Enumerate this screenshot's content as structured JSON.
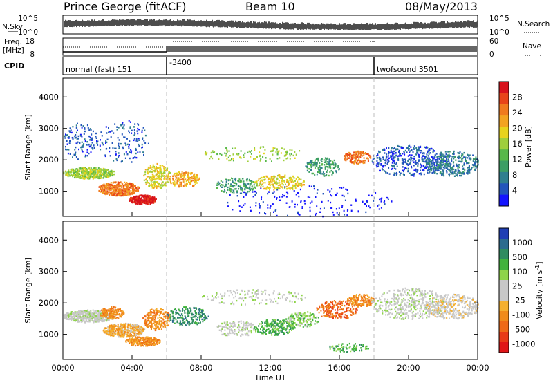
{
  "header": {
    "station": "Prince George (fitACF)",
    "beam": "Beam 10",
    "date": "08/May/2013"
  },
  "colors": {
    "data_ink": "#000000",
    "mode_divider": "#bdbdbd",
    "ground_scatter": "#c8c8c8"
  },
  "panels": {
    "nsky": {
      "label": "N.Sky",
      "right_label": "N.Search",
      "ytick_top": "10^5",
      "ytick_bottom": "10^0",
      "right_ytick_top": "10^5",
      "right_ytick_bottom": "10^0"
    },
    "freq": {
      "label_line1": "Freq.",
      "label_line2": "[MHz]",
      "right_label": "Nave",
      "ytick_top": "18",
      "ytick_bottom": "8",
      "right_ytick_top": "60",
      "right_ytick_bottom": "0"
    },
    "cpid": {
      "label": "CPID",
      "segments": [
        {
          "start_hour": 0,
          "end_hour": 6,
          "text": "normal (fast) 151"
        },
        {
          "start_hour": 6,
          "end_hour": 18,
          "text": "-3400"
        },
        {
          "start_hour": 18,
          "end_hour": 24,
          "text": "twofsound 3501"
        }
      ]
    }
  },
  "chart_data": [
    {
      "type": "heatmap",
      "name": "power",
      "ylabel": "Slant Range [km]",
      "yticks": [
        "1000",
        "2000",
        "3000",
        "4000"
      ],
      "ylim": [
        200,
        4600
      ],
      "xlim_hours": [
        0,
        24
      ],
      "colorbar": {
        "label": "Power [dB]",
        "tick_labels": [
          "4",
          "8",
          "12",
          "16",
          "20",
          "24",
          "28"
        ],
        "colors": [
          "#1414ff",
          "#2255bb",
          "#2f7f8f",
          "#3c9e64",
          "#58b84a",
          "#9fcf3c",
          "#e7d31c",
          "#f3a321",
          "#f07a1e",
          "#e84419",
          "#d8121c"
        ]
      }
    },
    {
      "type": "heatmap",
      "name": "velocity",
      "ylabel": "Slant Range [km]",
      "yticks": [
        "1000",
        "2000",
        "3000",
        "4000"
      ],
      "ylim": [
        200,
        4600
      ],
      "xlim_hours": [
        0,
        24
      ],
      "colorbar": {
        "label": "Velocity [m s",
        "label_sup": "-1",
        "label_close": "]",
        "tick_labels": [
          "1000",
          "500",
          "100",
          "25",
          "-25",
          "-100",
          "-500",
          "-1000"
        ],
        "colors": [
          "#1f3fb4",
          "#2c6c8e",
          "#2f8c5f",
          "#41b23c",
          "#8ed449",
          "#c8c8c8",
          "#c8c8c8",
          "#f5b02f",
          "#f08b1a",
          "#ef6a17",
          "#e83a17",
          "#e01517"
        ]
      }
    }
  ],
  "time_axis": {
    "label": "Time UT",
    "tick_labels": [
      "00:00",
      "04:00",
      "08:00",
      "12:00",
      "16:00",
      "20:00",
      "00:00"
    ]
  }
}
